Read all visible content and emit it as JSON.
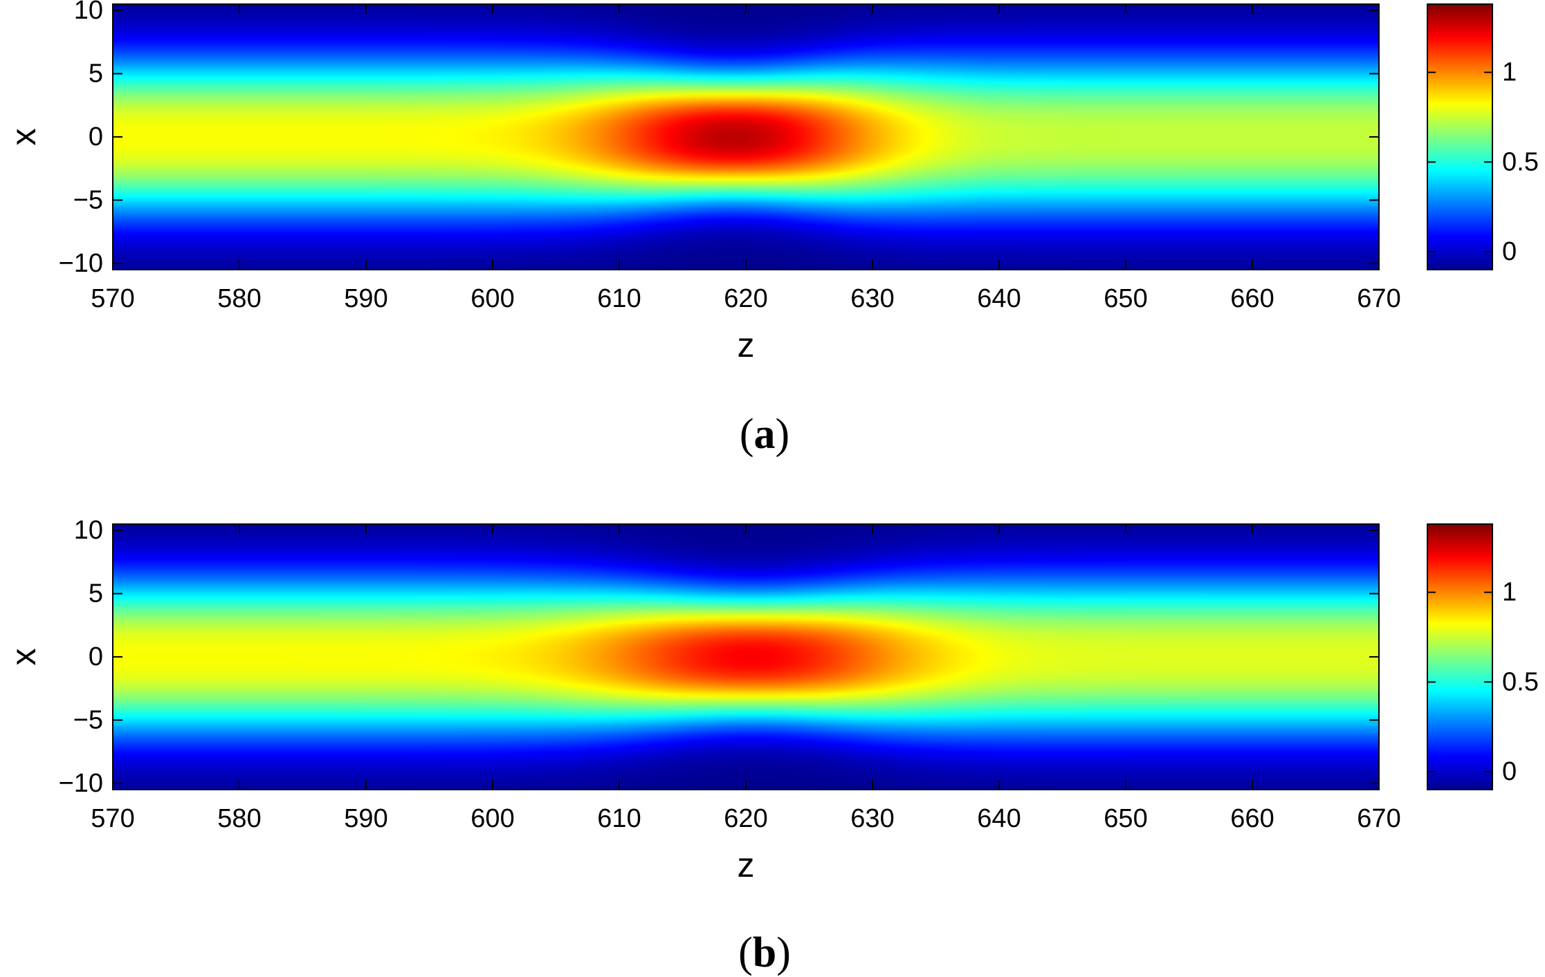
{
  "chart_data": [
    {
      "type": "heatmap",
      "panel_label": {
        "open": "(",
        "letter": "a",
        "close": ")"
      },
      "xlabel": "z",
      "ylabel": "x",
      "xlim": [
        570,
        670
      ],
      "ylim": [
        -10.5,
        10.5
      ],
      "xticks": [
        "570",
        "580",
        "590",
        "600",
        "610",
        "620",
        "630",
        "640",
        "650",
        "660",
        "670"
      ],
      "yticks": [
        "10",
        "5",
        "0",
        "−5",
        "−10"
      ],
      "ytick_values": [
        10,
        5,
        0,
        -5,
        -10
      ],
      "colorbar": {
        "range": [
          -0.1,
          1.38
        ],
        "ticks": [
          "1",
          "0.5",
          "0"
        ],
        "tick_values": [
          1,
          0.5,
          0
        ]
      },
      "field": {
        "base_peak": 0.9,
        "peak_value": 1.37,
        "peak_z": 619,
        "peak_z_width": 7.5,
        "peak_x_width": 4.3,
        "tail_peak": 0.82
      }
    },
    {
      "type": "heatmap",
      "panel_label": {
        "open": "(",
        "letter": "b",
        "close": ")"
      },
      "xlabel": "z",
      "ylabel": "x",
      "xlim": [
        570,
        670
      ],
      "ylim": [
        -10.5,
        10.5
      ],
      "xticks": [
        "570",
        "580",
        "590",
        "600",
        "610",
        "620",
        "630",
        "640",
        "650",
        "660",
        "670"
      ],
      "yticks": [
        "10",
        "5",
        "0",
        "−5",
        "−10"
      ],
      "ytick_values": [
        10,
        5,
        0,
        -5,
        -10
      ],
      "colorbar": {
        "range": [
          -0.1,
          1.38
        ],
        "ticks": [
          "1",
          "0.5",
          "0"
        ],
        "tick_values": [
          1,
          0.5,
          0
        ]
      },
      "field": {
        "base_peak": 0.9,
        "peak_value": 1.28,
        "peak_z": 620.5,
        "peak_z_width": 8.5,
        "peak_x_width": 4.6,
        "tail_peak": 0.86
      }
    }
  ],
  "colors": {
    "colormap": "jet",
    "axis": "#000000",
    "background": "#ffffff"
  }
}
